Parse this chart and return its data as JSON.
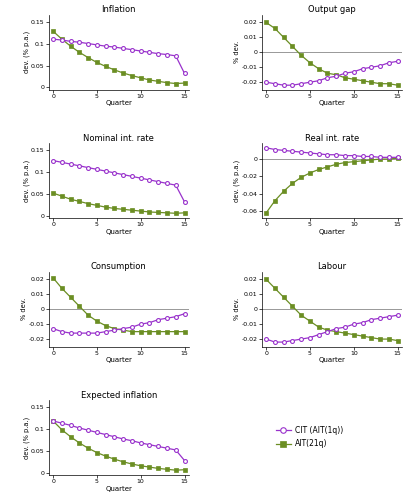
{
  "purple_color": "#9932CC",
  "green_color": "#6B8E23",
  "panels": [
    {
      "title": "Inflation",
      "ylabel": "dev. (% p.a.)",
      "ylim": [
        -0.005,
        0.165
      ],
      "yticks": [
        0.0,
        0.05,
        0.1,
        0.15
      ],
      "hline": null,
      "purple": [
        0.11,
        0.108,
        0.105,
        0.103,
        0.1,
        0.097,
        0.094,
        0.092,
        0.089,
        0.086,
        0.083,
        0.08,
        0.077,
        0.075,
        0.072,
        0.032
      ],
      "green": [
        0.128,
        0.11,
        0.094,
        0.08,
        0.068,
        0.057,
        0.048,
        0.04,
        0.033,
        0.027,
        0.022,
        0.017,
        0.014,
        0.011,
        0.009,
        0.01
      ]
    },
    {
      "title": "Output gap",
      "ylabel": "% dev.",
      "ylim": [
        -0.025,
        0.025
      ],
      "yticks": [
        -0.02,
        -0.01,
        0.0,
        0.01,
        0.02
      ],
      "hline": 0,
      "purple": [
        -0.02,
        -0.021,
        -0.022,
        -0.022,
        -0.021,
        -0.02,
        -0.019,
        -0.017,
        -0.016,
        -0.014,
        -0.013,
        -0.011,
        -0.01,
        -0.009,
        -0.007,
        -0.006
      ],
      "green": [
        0.02,
        0.016,
        0.01,
        0.004,
        -0.002,
        -0.007,
        -0.011,
        -0.014,
        -0.015,
        -0.017,
        -0.018,
        -0.019,
        -0.02,
        -0.021,
        -0.021,
        -0.022
      ]
    },
    {
      "title": "Nominal int. rate",
      "ylabel": "dev. (% p.a.)",
      "ylim": [
        -0.005,
        0.165
      ],
      "yticks": [
        0.0,
        0.05,
        0.1,
        0.15
      ],
      "hline": null,
      "purple": [
        0.126,
        0.122,
        0.118,
        0.114,
        0.11,
        0.106,
        0.102,
        0.098,
        0.094,
        0.09,
        0.086,
        0.082,
        0.078,
        0.074,
        0.07,
        0.032
      ],
      "green": [
        0.052,
        0.045,
        0.038,
        0.033,
        0.028,
        0.024,
        0.02,
        0.017,
        0.015,
        0.013,
        0.011,
        0.009,
        0.008,
        0.007,
        0.006,
        0.007
      ]
    },
    {
      "title": "Real int. rate",
      "ylabel": "dev. (% p.a.)",
      "ylim": [
        -0.068,
        0.018
      ],
      "yticks": [
        -0.06,
        -0.04,
        -0.02,
        0.0
      ],
      "hline": 0,
      "purple": [
        0.013,
        0.011,
        0.01,
        0.009,
        0.008,
        0.007,
        0.006,
        0.005,
        0.005,
        0.004,
        0.004,
        0.003,
        0.003,
        0.002,
        0.002,
        0.002
      ],
      "green": [
        -0.062,
        -0.048,
        -0.037,
        -0.028,
        -0.021,
        -0.016,
        -0.012,
        -0.009,
        -0.006,
        -0.004,
        -0.003,
        -0.002,
        -0.001,
        0.0,
        0.0,
        0.001
      ]
    },
    {
      "title": "Consumption",
      "ylabel": "% dev.",
      "ylim": [
        -0.025,
        0.025
      ],
      "yticks": [
        -0.02,
        -0.01,
        0.0,
        0.01,
        0.02
      ],
      "hline": 0,
      "purple": [
        -0.013,
        -0.015,
        -0.016,
        -0.016,
        -0.016,
        -0.016,
        -0.015,
        -0.014,
        -0.013,
        -0.012,
        -0.01,
        -0.009,
        -0.007,
        -0.006,
        -0.005,
        -0.003
      ],
      "green": [
        0.021,
        0.014,
        0.008,
        0.002,
        -0.004,
        -0.008,
        -0.011,
        -0.013,
        -0.014,
        -0.015,
        -0.015,
        -0.015,
        -0.015,
        -0.015,
        -0.015,
        -0.015
      ]
    },
    {
      "title": "Labour",
      "ylabel": "% dev.",
      "ylim": [
        -0.025,
        0.025
      ],
      "yticks": [
        -0.02,
        -0.01,
        0.0,
        0.01,
        0.02
      ],
      "hline": 0,
      "purple": [
        -0.02,
        -0.022,
        -0.022,
        -0.021,
        -0.02,
        -0.019,
        -0.017,
        -0.015,
        -0.013,
        -0.012,
        -0.01,
        -0.009,
        -0.007,
        -0.006,
        -0.005,
        -0.004
      ],
      "green": [
        0.02,
        0.014,
        0.008,
        0.002,
        -0.004,
        -0.008,
        -0.012,
        -0.014,
        -0.015,
        -0.016,
        -0.017,
        -0.018,
        -0.019,
        -0.02,
        -0.02,
        -0.021
      ]
    },
    {
      "title": "Expected inflation",
      "ylabel": "dev. (% p.a.)",
      "ylim": [
        -0.005,
        0.165
      ],
      "yticks": [
        0.0,
        0.05,
        0.1,
        0.15
      ],
      "hline": null,
      "purple": [
        0.118,
        0.113,
        0.108,
        0.102,
        0.097,
        0.092,
        0.087,
        0.082,
        0.077,
        0.073,
        0.068,
        0.064,
        0.06,
        0.056,
        0.052,
        0.028
      ],
      "green": [
        0.118,
        0.098,
        0.082,
        0.068,
        0.056,
        0.046,
        0.038,
        0.031,
        0.025,
        0.02,
        0.016,
        0.013,
        0.01,
        0.008,
        0.006,
        0.007
      ]
    }
  ],
  "xlabel": "Quarter",
  "quarters": [
    0,
    1,
    2,
    3,
    4,
    5,
    6,
    7,
    8,
    9,
    10,
    11,
    12,
    13,
    14,
    15
  ],
  "xticks": [
    0,
    5,
    10,
    15
  ],
  "legend_purple": "CIT (AIT(1q))",
  "legend_green": "AIT(21q)"
}
